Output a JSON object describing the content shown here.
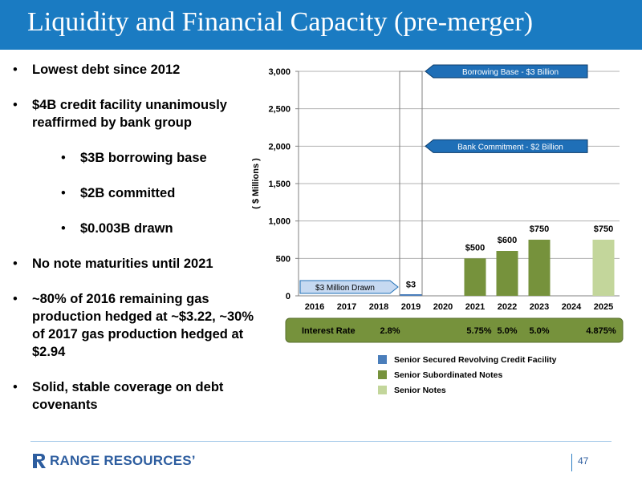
{
  "title": "Liquidity and Financial Capacity (pre-merger)",
  "bullets": [
    {
      "text": "Lowest debt since 2012"
    },
    {
      "text": "$4B credit facility unanimously reaffirmed by bank group",
      "sub": [
        "$3B borrowing base",
        "$2B committed",
        "$0.003B drawn"
      ]
    },
    {
      "text": "No note maturities until 2021"
    },
    {
      "text": "~80% of 2016 remaining gas production hedged at ~$3.22, ~30% of 2017 gas production hedged at $2.94"
    },
    {
      "text": "Solid, stable coverage on debt covenants"
    }
  ],
  "chart_data": {
    "type": "bar",
    "categories": [
      "2016",
      "2017",
      "2018",
      "2019",
      "2020",
      "2021",
      "2022",
      "2023",
      "2024",
      "2025"
    ],
    "series": [
      {
        "name": "Senior Secured Revolving Credit Facility",
        "color": "#4a7ebb",
        "values": [
          0,
          0,
          0,
          3,
          0,
          0,
          0,
          0,
          0,
          0
        ]
      },
      {
        "name": "Senior Subordinated Notes",
        "color": "#76923c",
        "values": [
          0,
          0,
          0,
          0,
          0,
          500,
          600,
          750,
          0,
          0
        ]
      },
      {
        "name": "Senior Notes",
        "color": "#c3d69b",
        "values": [
          0,
          0,
          0,
          0,
          0,
          0,
          0,
          0,
          0,
          750
        ]
      }
    ],
    "data_labels": [
      {
        "category": "2019",
        "text": "$3"
      },
      {
        "category": "2021",
        "text": "$500"
      },
      {
        "category": "2022",
        "text": "$600"
      },
      {
        "category": "2023",
        "text": "$750"
      },
      {
        "category": "2025",
        "text": "$750"
      }
    ],
    "ylabel": "( $ Millions )",
    "ylim": [
      0,
      3000
    ],
    "yticks": [
      0,
      500,
      1000,
      1500,
      2000,
      2500,
      3000
    ],
    "ytick_labels": [
      "0",
      "500",
      "1,000",
      "1,500",
      "2,000",
      "2,500",
      "3,000"
    ],
    "grid": true,
    "reference_box": {
      "category": "2019",
      "top_value": 3000
    },
    "callouts": [
      {
        "text": "Borrowing Base - $3 Billion",
        "value": 3000,
        "direction": "left"
      },
      {
        "text": "Bank Commitment - $2 Billion",
        "value": 2000,
        "direction": "left"
      },
      {
        "text": "$3 Million Drawn",
        "value": 100,
        "direction": "right"
      }
    ],
    "interest_rate": {
      "label": "Interest Rate",
      "values": [
        {
          "category": "2019",
          "text": "2.8%"
        },
        {
          "category": "2021",
          "text": "5.75%"
        },
        {
          "category": "2022",
          "text": "5.0%"
        },
        {
          "category": "2023",
          "text": "5.0%"
        },
        {
          "category": "2025",
          "text": "4.875%"
        }
      ]
    },
    "legend_placement": "bottom"
  },
  "footer": {
    "logo_text": "RANGE RESOURCES’",
    "page_number": "47"
  }
}
